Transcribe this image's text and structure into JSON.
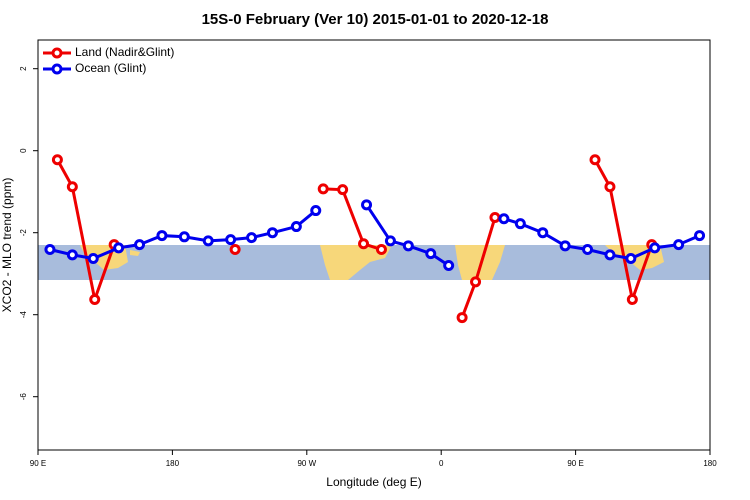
{
  "chart_data": {
    "type": "line",
    "title": "15S-0 February (Ver 10)   2015-01-01 to 2020-12-18",
    "x_label": "Longitude (deg E)",
    "y_label": "XCO2 - MLO trend (ppm)",
    "xlim": [
      90,
      540
    ],
    "xticks": [
      {
        "value": 90,
        "label": "90 E"
      },
      {
        "value": 180,
        "label": "180"
      },
      {
        "value": 270,
        "label": "90 W"
      },
      {
        "value": 360,
        "label": "0"
      },
      {
        "value": 450,
        "label": "90 E"
      },
      {
        "value": 540,
        "label": "180"
      }
    ],
    "ylim": [
      -7.3,
      2.7
    ],
    "yticks": [
      2,
      0,
      -2,
      -4,
      -6
    ],
    "legend": "top-left",
    "series": [
      {
        "name": "Land (Nadir&Glint)",
        "color": "#ee0000",
        "x": [
          103,
          113,
          128,
          141,
          null,
          222,
          null,
          281,
          294,
          308,
          320,
          null,
          374,
          383,
          396,
          null,
          463,
          473,
          488,
          501
        ],
        "values": [
          -0.22,
          -0.88,
          -3.63,
          -2.29,
          null,
          -2.41,
          null,
          -0.93,
          -0.95,
          -2.27,
          -2.41,
          null,
          -4.07,
          -3.2,
          -1.63,
          null,
          -0.22,
          -0.88,
          -3.63,
          -2.29
        ]
      },
      {
        "name": "Ocean (Glint)",
        "color": "#0000ee",
        "x": [
          98,
          113,
          127,
          144,
          158,
          173,
          188,
          204,
          219,
          233,
          247,
          263,
          276,
          null,
          310,
          326,
          338,
          353,
          365,
          null,
          402,
          413,
          428,
          443,
          458,
          473,
          487,
          503,
          519,
          533
        ],
        "values": [
          -2.41,
          -2.54,
          -2.63,
          -2.37,
          -2.29,
          -2.07,
          -2.1,
          -2.2,
          -2.17,
          -2.12,
          -2.0,
          -1.85,
          -1.46,
          null,
          -1.32,
          -2.2,
          -2.32,
          -2.51,
          -2.8,
          null,
          -1.66,
          -1.78,
          -2.0,
          -2.32,
          -2.41,
          -2.54,
          -2.63,
          -2.37,
          -2.29,
          -2.07
        ]
      }
    ]
  }
}
